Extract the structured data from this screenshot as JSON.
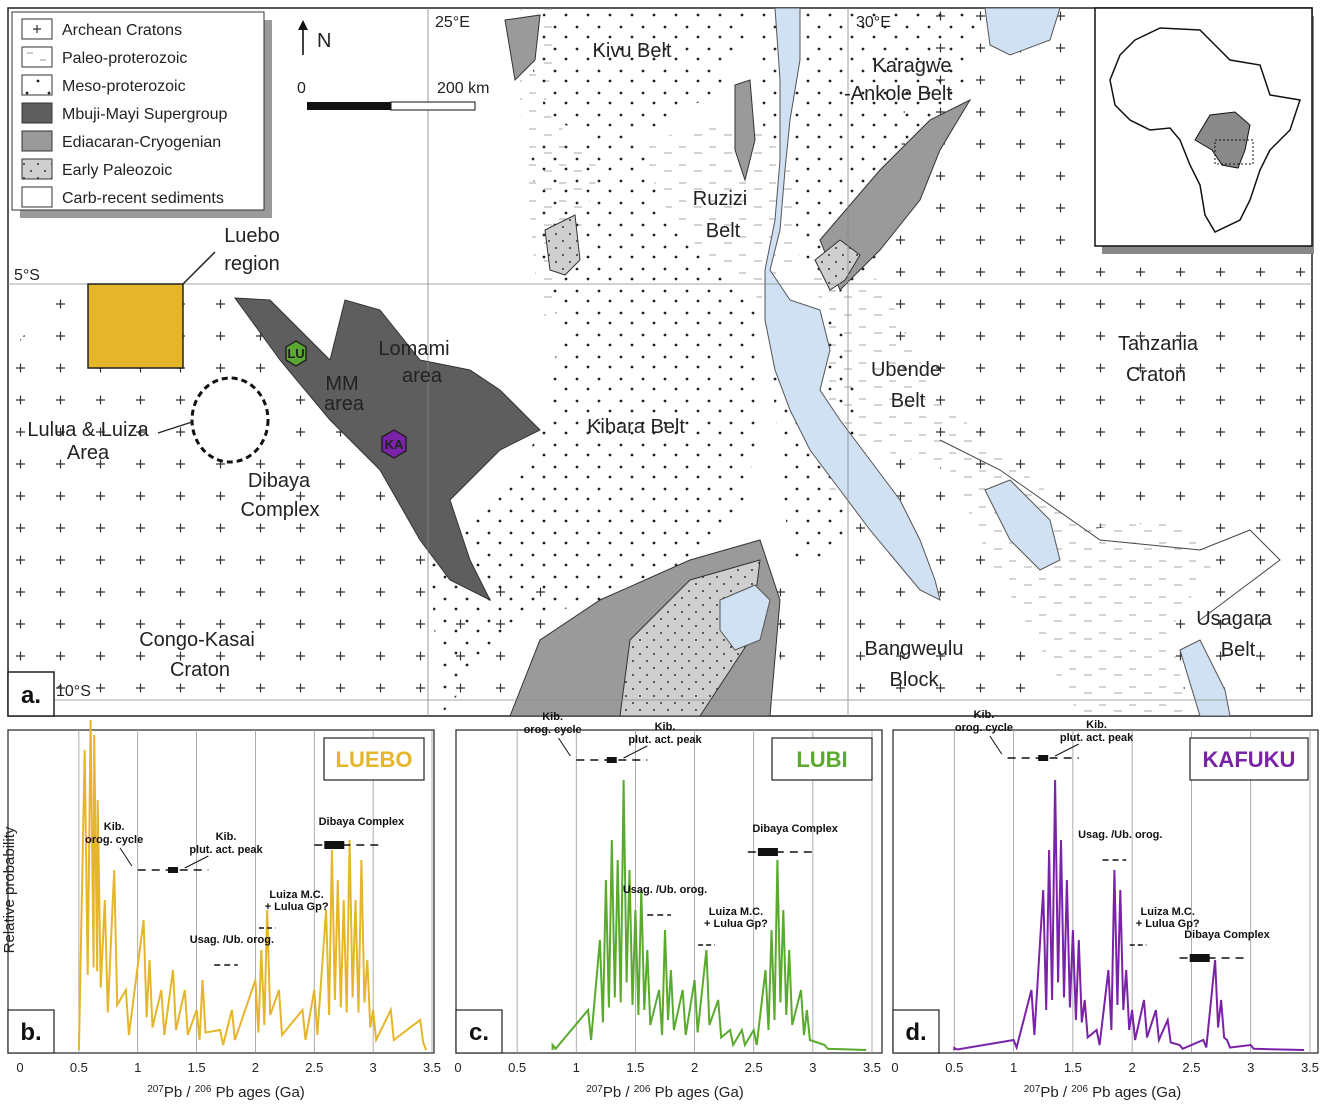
{
  "map": {
    "legend": [
      {
        "label": "Archean Cratons",
        "pattern": "plus"
      },
      {
        "label": "Paleo-proterozoic",
        "pattern": "dash"
      },
      {
        "label": "Meso-proterozoic",
        "pattern": "dot"
      },
      {
        "label": "Mbuji-Mayi Supergroup",
        "pattern": "dark"
      },
      {
        "label": "Ediacaran-Cryogenian",
        "pattern": "mid"
      },
      {
        "label": "Early Paleozoic",
        "pattern": "lightdot"
      },
      {
        "label": "Carb-recent sediments",
        "pattern": "blank"
      }
    ],
    "north": "N",
    "scale_start": "0",
    "scale_end": "200 km",
    "lon_labels": [
      "25°E",
      "30°E"
    ],
    "lat_labels": [
      "5°S",
      "10°S"
    ],
    "panel_letter": "a.",
    "labels": {
      "kivu": "Kivu Belt",
      "karagwe1": "Karagwe",
      "karagwe2": "-Ankole Belt",
      "ruzizi1": "Ruzizi",
      "ruzizi2": "Belt",
      "luebo1": "Luebo",
      "luebo2": "region",
      "lomami1": "Lomami",
      "lomami2": "area",
      "mm1": "MM",
      "mm2": "area",
      "lulua1": "Lulua & Luiza",
      "lulua2": "Area",
      "dibaya1": "Dibaya",
      "dibaya2": "Complex",
      "kibara": "Kibara Belt",
      "ubende1": "Ubende",
      "ubende2": "Belt",
      "tanzania1": "Tanzania",
      "tanzania2": "Craton",
      "congo1": "Congo-Kasai",
      "congo2": "Craton",
      "bangweulu1": "Bangweulu",
      "bangweulu2": "Block",
      "usagara1": "Usagara",
      "usagara2": "Belt"
    },
    "sites": [
      {
        "code": "LU",
        "color": "#5aa832"
      },
      {
        "code": "KA",
        "color": "#7a22a8"
      }
    ],
    "colors": {
      "luebo_box": "#e5b62a",
      "dark": "#5e5e5e",
      "mid": "#9a9a9a",
      "light": "#cfcfcf",
      "water": "#cfe1f2"
    }
  },
  "chart_data": [
    {
      "type": "line",
      "panel_letter": "b.",
      "title": "LUEBO",
      "color": "#e5b62a",
      "xlabel_sup1": "207",
      "xlabel_mid": "Pb / ",
      "xlabel_sup2": "206",
      "xlabel_end": " Pb ages (Ga)",
      "ylabel": "Relative probability",
      "xlim": [
        0,
        3.5
      ],
      "xticks": [
        "0",
        "0.5",
        "1",
        "1.5",
        "2",
        "2.5",
        "3",
        "3.5"
      ],
      "annotations": [
        "Kib. orog. cycle",
        "Kib. plut. act. peak",
        "Usag. /Ub. orog.",
        "Luiza M.C. + Lulua Gp?",
        "Dibaya Complex"
      ]
    },
    {
      "type": "line",
      "panel_letter": "c.",
      "title": "LUBI",
      "color": "#5aaa2e",
      "xlabel_sup1": "207",
      "xlabel_mid": "Pb / ",
      "xlabel_sup2": "206",
      "xlabel_end": " Pb ages (Ga)",
      "xlim": [
        0,
        3.5
      ],
      "xticks": [
        "0",
        "0.5",
        "1",
        "1.5",
        "2",
        "2.5",
        "3",
        "3.5"
      ],
      "annotations": [
        "Kib. orog. cycle",
        "Kib. plut. act. peak",
        "Usag. /Ub. orog.",
        "Luiza M.C. + Lulua Gp?",
        "Dibaya Complex"
      ]
    },
    {
      "type": "line",
      "panel_letter": "d.",
      "title": "KAFUKU",
      "color": "#7a22a8",
      "xlabel_sup1": "207",
      "xlabel_mid": "Pb / ",
      "xlabel_sup2": "206",
      "xlabel_end": " Pb ages (Ga)",
      "xlim": [
        0,
        3.5
      ],
      "xticks": [
        "0",
        "0.5",
        "1",
        "1.5",
        "2",
        "2.5",
        "3",
        "3.5"
      ],
      "annotations": [
        "Kib. orog. cycle",
        "Kib. plut. act. peak",
        "Usag. /Ub. orog.",
        "Luiza M.C. + Lulua Gp?",
        "Dibaya Complex"
      ]
    }
  ]
}
